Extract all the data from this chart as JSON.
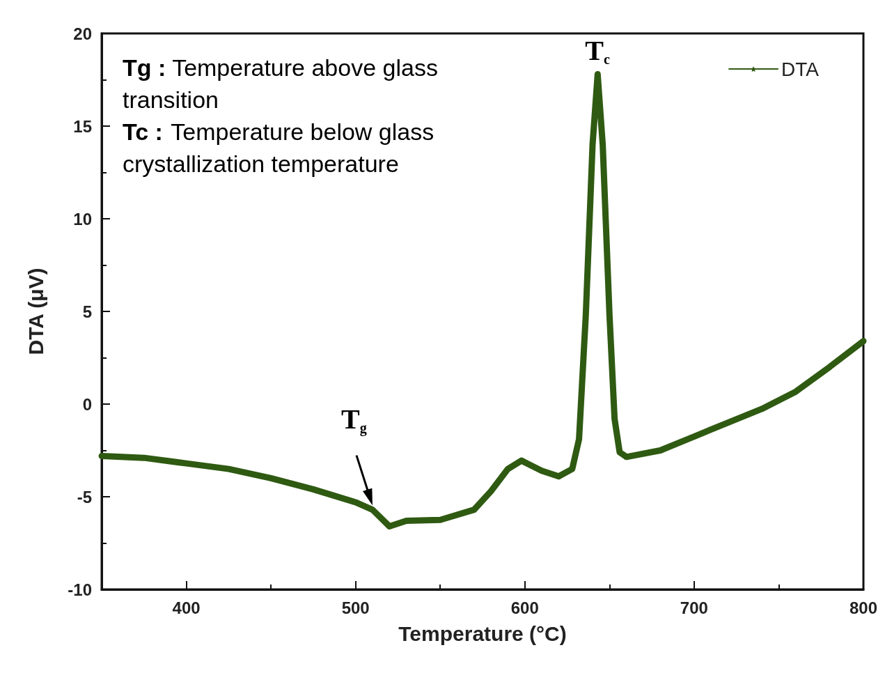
{
  "chart_data": {
    "type": "line",
    "xlabel": "Temperature (°C)",
    "ylabel": "DTA (μV)",
    "xlim": [
      350,
      800
    ],
    "xticks": [
      400,
      500,
      600,
      700,
      800
    ],
    "ylim": [
      -10,
      20
    ],
    "yticks": [
      -10,
      -5,
      0,
      5,
      10,
      15,
      20
    ],
    "grid": false,
    "legend": "top right",
    "marker": "star",
    "line_style": "solid",
    "annotations": [
      "Tg : Temperature above glass transition",
      "Tc : Temperature below glass crystallization temperature",
      {
        "text": "T$_{g}$",
        "x": 510,
        "y": -5.7
      },
      {
        "text": "T$_{c}$",
        "x": 643,
        "y": 17.8
      }
    ],
    "series": [
      {
        "name": "DTA",
        "color": "#2f5a12",
        "x": [
          350,
          375,
          400,
          425,
          450,
          475,
          500,
          510,
          520,
          530,
          550,
          570,
          580,
          590,
          598,
          610,
          620,
          628,
          632,
          636,
          640,
          643,
          646,
          650,
          653,
          656,
          660,
          680,
          700,
          720,
          740,
          760,
          780,
          800
        ],
        "values": [
          -2.8,
          -2.9,
          -3.2,
          -3.5,
          -4.0,
          -4.6,
          -5.3,
          -5.7,
          -6.6,
          -6.3,
          -6.25,
          -5.7,
          -4.7,
          -3.5,
          -3.05,
          -3.6,
          -3.9,
          -3.5,
          -1.9,
          4.8,
          14,
          17.8,
          14,
          4.8,
          -0.8,
          -2.6,
          -2.85,
          -2.5,
          -1.75,
          -1.0,
          -0.26,
          0.67,
          2.0,
          3.4
        ]
      }
    ]
  }
}
